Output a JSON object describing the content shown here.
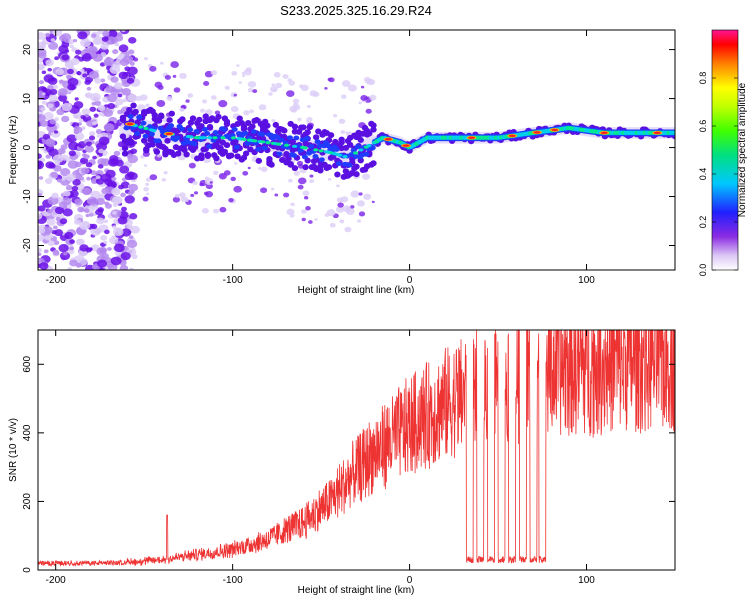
{
  "title": "S233.2025.325.16.29.R24",
  "chart_data": [
    {
      "type": "heatmap",
      "xlabel": "Height of straight line (km)",
      "ylabel": "Frequency (Hz)",
      "xlim": [
        -210,
        150
      ],
      "ylim": [
        -25,
        24
      ],
      "xticks": [
        -200,
        -100,
        0,
        100
      ],
      "yticks": [
        -20,
        -10,
        0,
        10,
        20
      ],
      "colorbar": {
        "label": "Normalized spectral amplitude",
        "range": [
          0,
          1
        ],
        "ticks": [
          0.0,
          0.2,
          0.4,
          0.6,
          0.8
        ],
        "tick_labels": [
          "0.0",
          "0.2",
          "0.4",
          "0.6",
          "0.8"
        ]
      },
      "ridge": [
        {
          "x": -160,
          "y": 5
        },
        {
          "x": -140,
          "y": 3
        },
        {
          "x": -120,
          "y": 2
        },
        {
          "x": -100,
          "y": 2
        },
        {
          "x": -80,
          "y": 1
        },
        {
          "x": -60,
          "y": 0
        },
        {
          "x": -45,
          "y": -1
        },
        {
          "x": -35,
          "y": -2
        },
        {
          "x": -25,
          "y": 0
        },
        {
          "x": -15,
          "y": 2
        },
        {
          "x": -5,
          "y": 1
        },
        {
          "x": 0,
          "y": 0
        },
        {
          "x": 10,
          "y": 2
        },
        {
          "x": 30,
          "y": 2
        },
        {
          "x": 50,
          "y": 2
        },
        {
          "x": 70,
          "y": 3
        },
        {
          "x": 90,
          "y": 4
        },
        {
          "x": 110,
          "y": 3
        },
        {
          "x": 130,
          "y": 3
        },
        {
          "x": 150,
          "y": 3
        }
      ]
    },
    {
      "type": "line",
      "xlabel": "Height of straight line (km)",
      "ylabel": "SNR (10 * v/v)",
      "xlim": [
        -210,
        150
      ],
      "ylim": [
        0,
        700
      ],
      "xticks": [
        -200,
        -100,
        0,
        100
      ],
      "yticks": [
        0,
        200,
        400,
        600
      ],
      "series": [
        {
          "name": "SNR",
          "color": "#ee3333"
        }
      ],
      "trend": [
        {
          "x": -210,
          "y": 20
        },
        {
          "x": -180,
          "y": 20
        },
        {
          "x": -160,
          "y": 22
        },
        {
          "x": -140,
          "y": 30
        },
        {
          "x": -120,
          "y": 45
        },
        {
          "x": -100,
          "y": 60
        },
        {
          "x": -80,
          "y": 90
        },
        {
          "x": -60,
          "y": 140
        },
        {
          "x": -45,
          "y": 200
        },
        {
          "x": -35,
          "y": 260
        },
        {
          "x": -20,
          "y": 340
        },
        {
          "x": 0,
          "y": 420
        },
        {
          "x": 20,
          "y": 480
        },
        {
          "x": 40,
          "y": 540
        },
        {
          "x": 60,
          "y": 570
        },
        {
          "x": 80,
          "y": 590
        },
        {
          "x": 100,
          "y": 600
        },
        {
          "x": 120,
          "y": 610
        },
        {
          "x": 150,
          "y": 615
        }
      ],
      "dropouts": [
        {
          "from": 32,
          "to": 36
        },
        {
          "from": 38,
          "to": 42
        },
        {
          "from": 44,
          "to": 48
        },
        {
          "from": 50,
          "to": 54
        },
        {
          "from": 56,
          "to": 60
        },
        {
          "from": 62,
          "to": 66
        },
        {
          "from": 68,
          "to": 72
        },
        {
          "from": 73,
          "to": 77
        }
      ],
      "spike": {
        "x": -137,
        "y": 160
      }
    }
  ]
}
